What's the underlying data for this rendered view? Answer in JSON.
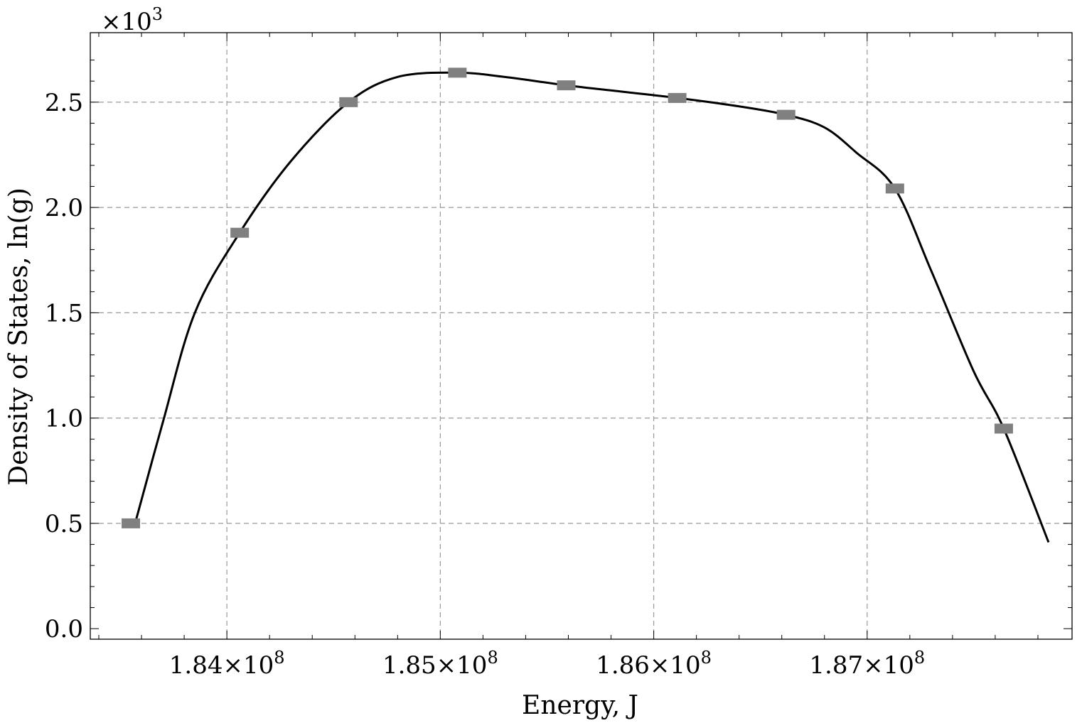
{
  "chart_data": {
    "type": "scatter",
    "xlabel": "Energy, J",
    "ylabel": "Density of States, ln(g)",
    "y_multiplier_label": "×10",
    "y_multiplier_exponent": "3",
    "xlim": [
      183360000,
      187960000
    ],
    "ylim": [
      -0.05,
      2.83
    ],
    "x_ticks": [
      {
        "value": 184000000,
        "mantissa": "1.84",
        "times": "×10",
        "exponent": "8"
      },
      {
        "value": 185000000,
        "mantissa": "1.85",
        "times": "×10",
        "exponent": "8"
      },
      {
        "value": 186000000,
        "mantissa": "1.86",
        "times": "×10",
        "exponent": "8"
      },
      {
        "value": 187000000,
        "mantissa": "1.87",
        "times": "×10",
        "exponent": "8"
      }
    ],
    "y_ticks": [
      {
        "value": 0.0,
        "label": "0.0"
      },
      {
        "value": 0.5,
        "label": "0.5"
      },
      {
        "value": 1.0,
        "label": "1.0"
      },
      {
        "value": 1.5,
        "label": "1.5"
      },
      {
        "value": 2.0,
        "label": "2.0"
      },
      {
        "value": 2.5,
        "label": "2.5"
      }
    ],
    "grid": true,
    "series": [
      {
        "kind": "markers",
        "color": "#808080",
        "marker": "rectangle",
        "x": [
          183550000,
          184060000,
          184570000,
          185080000,
          185590000,
          186110000,
          186620000,
          187130000,
          187640000
        ],
        "y": [
          0.5,
          1.88,
          2.5,
          2.64,
          2.58,
          2.52,
          2.44,
          2.09,
          0.95
        ]
      },
      {
        "kind": "fit-line",
        "color": "#000000",
        "x": [
          183570000,
          183700000,
          183850000,
          184060000,
          184300000,
          184570000,
          184800000,
          185080000,
          185300000,
          185590000,
          185850000,
          186110000,
          186400000,
          186620000,
          186800000,
          186950000,
          187130000,
          187300000,
          187500000,
          187640000,
          187850000
        ],
        "y": [
          0.5,
          0.98,
          1.5,
          1.88,
          2.22,
          2.5,
          2.62,
          2.64,
          2.62,
          2.58,
          2.55,
          2.52,
          2.48,
          2.44,
          2.38,
          2.26,
          2.09,
          1.7,
          1.22,
          0.95,
          0.41
        ]
      }
    ]
  }
}
